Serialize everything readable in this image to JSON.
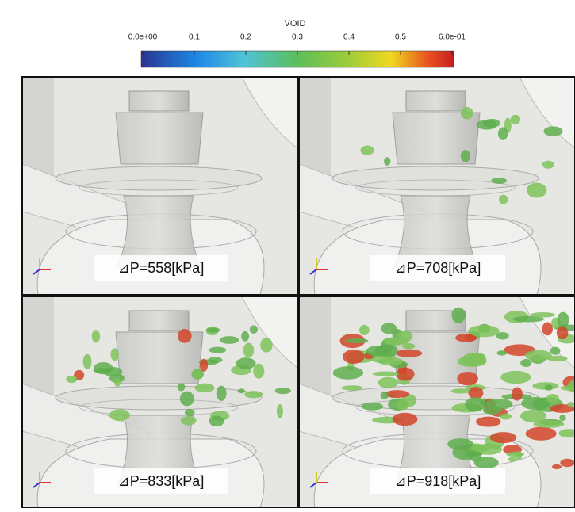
{
  "colorbar": {
    "title": "VOID",
    "ticks": [
      "0.0e+00",
      "0.1",
      "0.2",
      "0.3",
      "0.4",
      "0.5",
      "6.0e-01"
    ]
  },
  "panels": [
    {
      "label": "⊿P=558[kPa]"
    },
    {
      "label": "⊿P=708[kPa]"
    },
    {
      "label": "⊿P=833[kPa]"
    },
    {
      "label": "⊿P=918[kPa]"
    }
  ]
}
